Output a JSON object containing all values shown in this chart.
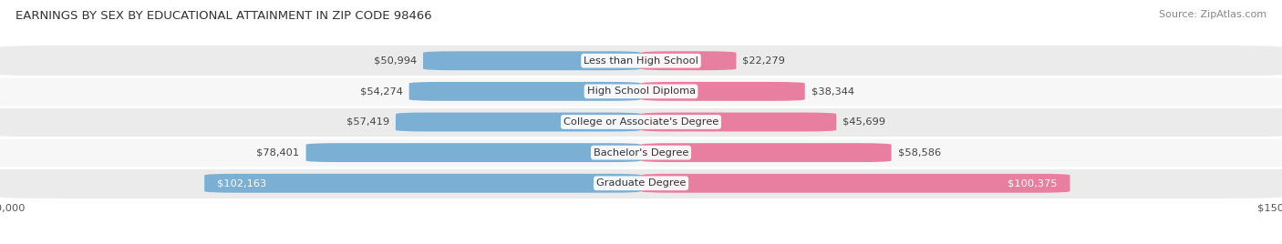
{
  "title": "EARNINGS BY SEX BY EDUCATIONAL ATTAINMENT IN ZIP CODE 98466",
  "source": "Source: ZipAtlas.com",
  "categories": [
    "Less than High School",
    "High School Diploma",
    "College or Associate's Degree",
    "Bachelor's Degree",
    "Graduate Degree"
  ],
  "male_values": [
    50994,
    54274,
    57419,
    78401,
    102163
  ],
  "female_values": [
    22279,
    38344,
    45699,
    58586,
    100375
  ],
  "male_color": "#7bafd4",
  "female_color": "#e87fa0",
  "row_bg_color": "#ebebeb",
  "row_alt_bg_color": "#f7f7f7",
  "xlim": 150000,
  "bar_height": 0.62,
  "title_fontsize": 9.5,
  "label_fontsize": 8.2,
  "value_fontsize": 8.2,
  "tick_fontsize": 8.2,
  "source_fontsize": 8.0,
  "legend_fontsize": 8.5
}
